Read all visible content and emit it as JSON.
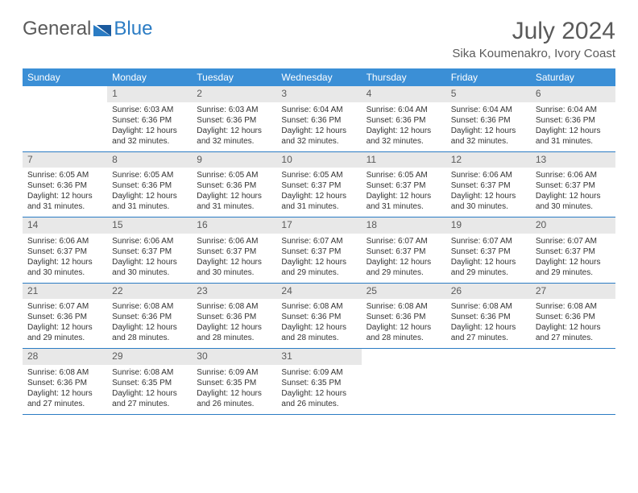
{
  "logo": {
    "text1": "General",
    "text2": "Blue"
  },
  "title": "July 2024",
  "location": "Sika Koumenakro, Ivory Coast",
  "colors": {
    "header_bg": "#3b8fd6",
    "header_text": "#ffffff",
    "daynum_bg": "#e8e8e8",
    "border": "#2b7cc4",
    "text": "#333333",
    "title_text": "#5a5a5a"
  },
  "day_names": [
    "Sunday",
    "Monday",
    "Tuesday",
    "Wednesday",
    "Thursday",
    "Friday",
    "Saturday"
  ],
  "weeks": [
    [
      {
        "day": "",
        "sunrise": "",
        "sunset": "",
        "daylight": ""
      },
      {
        "day": "1",
        "sunrise": "Sunrise: 6:03 AM",
        "sunset": "Sunset: 6:36 PM",
        "daylight": "Daylight: 12 hours and 32 minutes."
      },
      {
        "day": "2",
        "sunrise": "Sunrise: 6:03 AM",
        "sunset": "Sunset: 6:36 PM",
        "daylight": "Daylight: 12 hours and 32 minutes."
      },
      {
        "day": "3",
        "sunrise": "Sunrise: 6:04 AM",
        "sunset": "Sunset: 6:36 PM",
        "daylight": "Daylight: 12 hours and 32 minutes."
      },
      {
        "day": "4",
        "sunrise": "Sunrise: 6:04 AM",
        "sunset": "Sunset: 6:36 PM",
        "daylight": "Daylight: 12 hours and 32 minutes."
      },
      {
        "day": "5",
        "sunrise": "Sunrise: 6:04 AM",
        "sunset": "Sunset: 6:36 PM",
        "daylight": "Daylight: 12 hours and 32 minutes."
      },
      {
        "day": "6",
        "sunrise": "Sunrise: 6:04 AM",
        "sunset": "Sunset: 6:36 PM",
        "daylight": "Daylight: 12 hours and 31 minutes."
      }
    ],
    [
      {
        "day": "7",
        "sunrise": "Sunrise: 6:05 AM",
        "sunset": "Sunset: 6:36 PM",
        "daylight": "Daylight: 12 hours and 31 minutes."
      },
      {
        "day": "8",
        "sunrise": "Sunrise: 6:05 AM",
        "sunset": "Sunset: 6:36 PM",
        "daylight": "Daylight: 12 hours and 31 minutes."
      },
      {
        "day": "9",
        "sunrise": "Sunrise: 6:05 AM",
        "sunset": "Sunset: 6:36 PM",
        "daylight": "Daylight: 12 hours and 31 minutes."
      },
      {
        "day": "10",
        "sunrise": "Sunrise: 6:05 AM",
        "sunset": "Sunset: 6:37 PM",
        "daylight": "Daylight: 12 hours and 31 minutes."
      },
      {
        "day": "11",
        "sunrise": "Sunrise: 6:05 AM",
        "sunset": "Sunset: 6:37 PM",
        "daylight": "Daylight: 12 hours and 31 minutes."
      },
      {
        "day": "12",
        "sunrise": "Sunrise: 6:06 AM",
        "sunset": "Sunset: 6:37 PM",
        "daylight": "Daylight: 12 hours and 30 minutes."
      },
      {
        "day": "13",
        "sunrise": "Sunrise: 6:06 AM",
        "sunset": "Sunset: 6:37 PM",
        "daylight": "Daylight: 12 hours and 30 minutes."
      }
    ],
    [
      {
        "day": "14",
        "sunrise": "Sunrise: 6:06 AM",
        "sunset": "Sunset: 6:37 PM",
        "daylight": "Daylight: 12 hours and 30 minutes."
      },
      {
        "day": "15",
        "sunrise": "Sunrise: 6:06 AM",
        "sunset": "Sunset: 6:37 PM",
        "daylight": "Daylight: 12 hours and 30 minutes."
      },
      {
        "day": "16",
        "sunrise": "Sunrise: 6:06 AM",
        "sunset": "Sunset: 6:37 PM",
        "daylight": "Daylight: 12 hours and 30 minutes."
      },
      {
        "day": "17",
        "sunrise": "Sunrise: 6:07 AM",
        "sunset": "Sunset: 6:37 PM",
        "daylight": "Daylight: 12 hours and 29 minutes."
      },
      {
        "day": "18",
        "sunrise": "Sunrise: 6:07 AM",
        "sunset": "Sunset: 6:37 PM",
        "daylight": "Daylight: 12 hours and 29 minutes."
      },
      {
        "day": "19",
        "sunrise": "Sunrise: 6:07 AM",
        "sunset": "Sunset: 6:37 PM",
        "daylight": "Daylight: 12 hours and 29 minutes."
      },
      {
        "day": "20",
        "sunrise": "Sunrise: 6:07 AM",
        "sunset": "Sunset: 6:37 PM",
        "daylight": "Daylight: 12 hours and 29 minutes."
      }
    ],
    [
      {
        "day": "21",
        "sunrise": "Sunrise: 6:07 AM",
        "sunset": "Sunset: 6:36 PM",
        "daylight": "Daylight: 12 hours and 29 minutes."
      },
      {
        "day": "22",
        "sunrise": "Sunrise: 6:08 AM",
        "sunset": "Sunset: 6:36 PM",
        "daylight": "Daylight: 12 hours and 28 minutes."
      },
      {
        "day": "23",
        "sunrise": "Sunrise: 6:08 AM",
        "sunset": "Sunset: 6:36 PM",
        "daylight": "Daylight: 12 hours and 28 minutes."
      },
      {
        "day": "24",
        "sunrise": "Sunrise: 6:08 AM",
        "sunset": "Sunset: 6:36 PM",
        "daylight": "Daylight: 12 hours and 28 minutes."
      },
      {
        "day": "25",
        "sunrise": "Sunrise: 6:08 AM",
        "sunset": "Sunset: 6:36 PM",
        "daylight": "Daylight: 12 hours and 28 minutes."
      },
      {
        "day": "26",
        "sunrise": "Sunrise: 6:08 AM",
        "sunset": "Sunset: 6:36 PM",
        "daylight": "Daylight: 12 hours and 27 minutes."
      },
      {
        "day": "27",
        "sunrise": "Sunrise: 6:08 AM",
        "sunset": "Sunset: 6:36 PM",
        "daylight": "Daylight: 12 hours and 27 minutes."
      }
    ],
    [
      {
        "day": "28",
        "sunrise": "Sunrise: 6:08 AM",
        "sunset": "Sunset: 6:36 PM",
        "daylight": "Daylight: 12 hours and 27 minutes."
      },
      {
        "day": "29",
        "sunrise": "Sunrise: 6:08 AM",
        "sunset": "Sunset: 6:35 PM",
        "daylight": "Daylight: 12 hours and 27 minutes."
      },
      {
        "day": "30",
        "sunrise": "Sunrise: 6:09 AM",
        "sunset": "Sunset: 6:35 PM",
        "daylight": "Daylight: 12 hours and 26 minutes."
      },
      {
        "day": "31",
        "sunrise": "Sunrise: 6:09 AM",
        "sunset": "Sunset: 6:35 PM",
        "daylight": "Daylight: 12 hours and 26 minutes."
      },
      {
        "day": "",
        "sunrise": "",
        "sunset": "",
        "daylight": ""
      },
      {
        "day": "",
        "sunrise": "",
        "sunset": "",
        "daylight": ""
      },
      {
        "day": "",
        "sunrise": "",
        "sunset": "",
        "daylight": ""
      }
    ]
  ]
}
